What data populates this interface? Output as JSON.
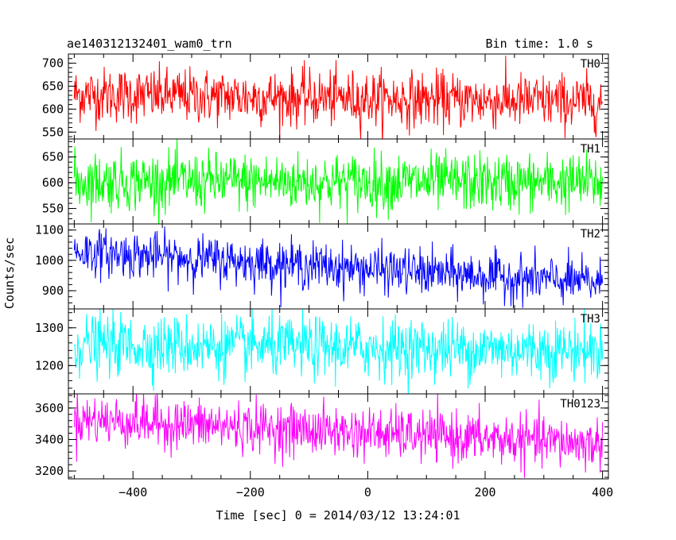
{
  "header": {
    "left_title": "ae140312132401_wam0_trn",
    "right_title": "Bin time: 1.0 s"
  },
  "xlabel": "Time [sec] 0 = 2014/03/12 13:24:01",
  "ylabel": "Counts/sec",
  "chart_data": {
    "type": "line",
    "x_axis": {
      "range": [
        -510,
        410
      ],
      "ticks": [
        -400,
        -200,
        0,
        200,
        400
      ],
      "tick_labels": [
        "−400",
        "−200",
        "0",
        "200",
        "400"
      ]
    },
    "series_x_range": [
      -500,
      400
    ],
    "bin_time_s": 1.0,
    "panels": [
      {
        "name": "TH0",
        "color": "#ff0000",
        "ylim": [
          535,
          720
        ],
        "yticks": [
          550,
          600,
          650,
          700
        ],
        "ytick_labels": [
          "550",
          "600",
          "650",
          "700"
        ],
        "mean_start": 632,
        "mean_end": 615,
        "spread": 30
      },
      {
        "name": "TH1",
        "color": "#00ff00",
        "ylim": [
          520,
          685
        ],
        "yticks": [
          550,
          600,
          650
        ],
        "ytick_labels": [
          "550",
          "600",
          "650"
        ],
        "mean_start": 603,
        "mean_end": 600,
        "spread": 28
      },
      {
        "name": "TH2",
        "color": "#0000ff",
        "ylim": [
          840,
          1120
        ],
        "yticks": [
          900,
          1000,
          1100
        ],
        "ytick_labels": [
          "900",
          "1000",
          "1100"
        ],
        "mean_start": 1030,
        "mean_end": 925,
        "spread": 38
      },
      {
        "name": "TH3",
        "color": "#00ffff",
        "ylim": [
          1125,
          1350
        ],
        "yticks": [
          1200,
          1300
        ],
        "ytick_labels": [
          "1200",
          "1300"
        ],
        "mean_start": 1255,
        "mean_end": 1240,
        "spread": 40
      },
      {
        "name": "TH0123",
        "color": "#ff00ff",
        "ylim": [
          3150,
          3690
        ],
        "yticks": [
          3200,
          3400,
          3600
        ],
        "ytick_labels": [
          "3200",
          "3400",
          "3600"
        ],
        "mean_start": 3530,
        "mean_end": 3370,
        "spread": 80
      }
    ]
  }
}
